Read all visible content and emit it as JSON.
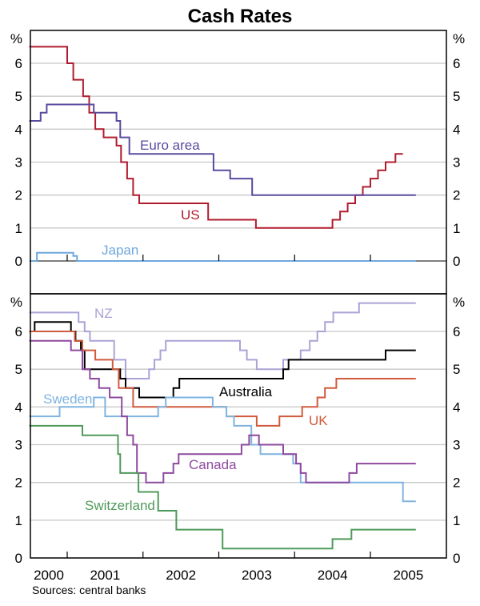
{
  "chart_data": [
    {
      "type": "line",
      "panel": "top",
      "title": "Cash Rates",
      "ylabel_left": "%",
      "ylabel_right": "%",
      "ylim": [
        -0.7,
        7.0
      ],
      "yticks": [
        0,
        1,
        2,
        3,
        4,
        5,
        6
      ],
      "grid": true,
      "series": [
        {
          "name": "US",
          "label": "US",
          "color": "#b01c2e",
          "steps": [
            [
              2000.5,
              6.5
            ],
            [
              2001.0,
              6.0
            ],
            [
              2001.08,
              5.5
            ],
            [
              2001.21,
              5.0
            ],
            [
              2001.29,
              4.5
            ],
            [
              2001.37,
              4.0
            ],
            [
              2001.48,
              3.75
            ],
            [
              2001.65,
              3.5
            ],
            [
              2001.71,
              3.0
            ],
            [
              2001.79,
              2.5
            ],
            [
              2001.87,
              2.0
            ],
            [
              2001.95,
              1.75
            ],
            [
              2002.86,
              1.25
            ],
            [
              2003.49,
              1.0
            ],
            [
              2004.5,
              1.25
            ],
            [
              2004.6,
              1.5
            ],
            [
              2004.7,
              1.75
            ],
            [
              2004.8,
              2.0
            ],
            [
              2004.9,
              2.25
            ],
            [
              2005.0,
              2.5
            ],
            [
              2005.1,
              2.75
            ],
            [
              2005.2,
              3.0
            ],
            [
              2005.33,
              3.25
            ],
            [
              2005.43,
              3.25
            ]
          ]
        },
        {
          "name": "Euro area",
          "label": "Euro area",
          "color": "#5b4a9e",
          "steps": [
            [
              2000.5,
              4.25
            ],
            [
              2000.65,
              4.5
            ],
            [
              2000.73,
              4.75
            ],
            [
              2001.35,
              4.5
            ],
            [
              2001.65,
              4.25
            ],
            [
              2001.7,
              3.75
            ],
            [
              2001.82,
              3.25
            ],
            [
              2002.93,
              2.75
            ],
            [
              2003.15,
              2.5
            ],
            [
              2003.44,
              2.0
            ],
            [
              2005.6,
              2.0
            ]
          ]
        },
        {
          "name": "Japan",
          "label": "Japan",
          "color": "#6fa8dc",
          "steps": [
            [
              2000.5,
              0.0
            ],
            [
              2000.6,
              0.25
            ],
            [
              2001.08,
              0.15
            ],
            [
              2001.13,
              0.0
            ],
            [
              2005.6,
              0.0
            ]
          ]
        }
      ]
    },
    {
      "type": "line",
      "panel": "bottom",
      "ylabel_left": "%",
      "ylabel_right": "%",
      "ylim": [
        0,
        7.0
      ],
      "yticks": [
        0,
        1,
        2,
        3,
        4,
        5,
        6
      ],
      "xticks": [
        "2000",
        "2001",
        "2002",
        "2003",
        "2004",
        "2005"
      ],
      "grid": true,
      "series": [
        {
          "name": "NZ",
          "label": "NZ",
          "color": "#a9a4d6",
          "steps": [
            [
              2000.5,
              6.5
            ],
            [
              2001.15,
              6.25
            ],
            [
              2001.23,
              6.0
            ],
            [
              2001.3,
              5.75
            ],
            [
              2001.62,
              5.25
            ],
            [
              2001.77,
              4.75
            ],
            [
              2002.08,
              5.0
            ],
            [
              2002.15,
              5.25
            ],
            [
              2002.23,
              5.5
            ],
            [
              2002.3,
              5.75
            ],
            [
              2003.28,
              5.5
            ],
            [
              2003.37,
              5.25
            ],
            [
              2003.5,
              5.0
            ],
            [
              2003.85,
              5.25
            ],
            [
              2004.08,
              5.5
            ],
            [
              2004.2,
              5.75
            ],
            [
              2004.3,
              6.0
            ],
            [
              2004.4,
              6.25
            ],
            [
              2004.51,
              6.5
            ],
            [
              2004.85,
              6.75
            ],
            [
              2005.6,
              6.75
            ]
          ]
        },
        {
          "name": "Australia",
          "label": "Australia",
          "color": "#000000",
          "steps": [
            [
              2000.5,
              6.0
            ],
            [
              2000.57,
              6.25
            ],
            [
              2001.05,
              6.0
            ],
            [
              2001.11,
              5.75
            ],
            [
              2001.18,
              5.5
            ],
            [
              2001.23,
              5.0
            ],
            [
              2001.7,
              4.75
            ],
            [
              2001.77,
              4.5
            ],
            [
              2001.95,
              4.25
            ],
            [
              2002.4,
              4.5
            ],
            [
              2002.48,
              4.75
            ],
            [
              2003.85,
              5.0
            ],
            [
              2003.92,
              5.25
            ],
            [
              2005.2,
              5.5
            ],
            [
              2005.6,
              5.5
            ]
          ]
        },
        {
          "name": "UK",
          "label": "UK",
          "color": "#d05a3c",
          "steps": [
            [
              2000.5,
              6.0
            ],
            [
              2001.1,
              5.75
            ],
            [
              2001.2,
              5.5
            ],
            [
              2001.37,
              5.25
            ],
            [
              2001.6,
              5.0
            ],
            [
              2001.68,
              4.5
            ],
            [
              2001.87,
              4.0
            ],
            [
              2003.1,
              3.75
            ],
            [
              2003.5,
              3.5
            ],
            [
              2003.8,
              3.75
            ],
            [
              2004.1,
              4.0
            ],
            [
              2004.3,
              4.25
            ],
            [
              2004.4,
              4.5
            ],
            [
              2004.55,
              4.75
            ],
            [
              2005.6,
              4.75
            ]
          ]
        },
        {
          "name": "Sweden",
          "label": "Sweden",
          "color": "#7fb4e0",
          "steps": [
            [
              2000.5,
              3.75
            ],
            [
              2000.9,
              4.0
            ],
            [
              2001.35,
              4.25
            ],
            [
              2001.5,
              3.75
            ],
            [
              2002.2,
              4.0
            ],
            [
              2002.3,
              4.25
            ],
            [
              2002.92,
              4.0
            ],
            [
              2003.1,
              3.75
            ],
            [
              2003.2,
              3.5
            ],
            [
              2003.43,
              3.0
            ],
            [
              2003.55,
              2.75
            ],
            [
              2003.98,
              2.5
            ],
            [
              2004.08,
              2.0
            ],
            [
              2005.43,
              1.5
            ],
            [
              2005.6,
              1.5
            ]
          ]
        },
        {
          "name": "Canada",
          "label": "Canada",
          "color": "#8e4a9e",
          "steps": [
            [
              2000.5,
              5.75
            ],
            [
              2001.05,
              5.5
            ],
            [
              2001.2,
              5.0
            ],
            [
              2001.3,
              4.75
            ],
            [
              2001.42,
              4.5
            ],
            [
              2001.56,
              4.25
            ],
            [
              2001.72,
              3.75
            ],
            [
              2001.79,
              3.25
            ],
            [
              2001.87,
              3.0
            ],
            [
              2001.92,
              2.25
            ],
            [
              2002.04,
              2.0
            ],
            [
              2002.27,
              2.25
            ],
            [
              2002.4,
              2.5
            ],
            [
              2002.47,
              2.75
            ],
            [
              2003.3,
              3.0
            ],
            [
              2003.4,
              3.25
            ],
            [
              2003.53,
              3.0
            ],
            [
              2003.85,
              2.75
            ],
            [
              2004.02,
              2.5
            ],
            [
              2004.08,
              2.25
            ],
            [
              2004.15,
              2.0
            ],
            [
              2004.72,
              2.25
            ],
            [
              2004.82,
              2.5
            ],
            [
              2005.6,
              2.5
            ]
          ]
        },
        {
          "name": "Switzerland",
          "label": "Switzerland",
          "color": "#4f9a5a",
          "steps": [
            [
              2000.5,
              3.5
            ],
            [
              2001.2,
              3.25
            ],
            [
              2001.67,
              2.75
            ],
            [
              2001.7,
              2.25
            ],
            [
              2001.94,
              1.75
            ],
            [
              2002.2,
              1.25
            ],
            [
              2002.44,
              0.75
            ],
            [
              2003.05,
              0.25
            ],
            [
              2004.5,
              0.5
            ],
            [
              2004.75,
              0.75
            ],
            [
              2005.6,
              0.75
            ]
          ]
        }
      ]
    }
  ],
  "title": "Cash Rates",
  "source": "Sources: central banks",
  "axis": {
    "percent": "%",
    "y_ticks": [
      "0",
      "1",
      "2",
      "3",
      "4",
      "5",
      "6"
    ],
    "x_labels": [
      "2000",
      "2001",
      "2002",
      "2003",
      "2004",
      "2005"
    ]
  }
}
